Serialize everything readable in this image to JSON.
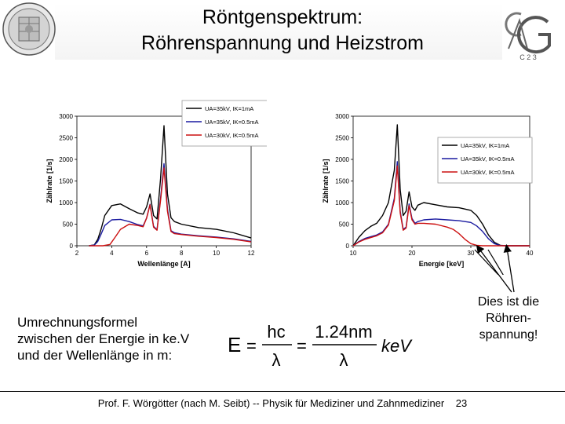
{
  "header": {
    "title_line1": "Röntgenspektrum:",
    "title_line2": "Röhrenspannung und Heizstrom",
    "logo_right_text": "C 2 3"
  },
  "chart_data": [
    {
      "type": "line",
      "xlabel": "Wellenlänge [A]",
      "ylabel": "Zählrate [1/s]",
      "xlim": [
        2,
        12
      ],
      "ylim": [
        0,
        3000
      ],
      "xticks": [
        2,
        4,
        6,
        8,
        10,
        12
      ],
      "yticks": [
        0,
        500,
        1000,
        1500,
        2000,
        2500,
        3000
      ],
      "legend_position": "top-center",
      "series": [
        {
          "name": "UA=35kV, IK=1mA",
          "color": "#000000",
          "x": [
            2.7,
            3.0,
            3.2,
            3.4,
            3.6,
            4.0,
            4.5,
            5.0,
            5.5,
            5.8,
            6.0,
            6.2,
            6.4,
            6.6,
            6.8,
            7.0,
            7.2,
            7.4,
            7.6,
            8.0,
            9.0,
            10.0,
            11.0,
            12.0
          ],
          "y": [
            0,
            20,
            150,
            400,
            700,
            930,
            970,
            860,
            760,
            730,
            900,
            1200,
            700,
            620,
            1550,
            2780,
            1200,
            650,
            560,
            500,
            420,
            380,
            300,
            180
          ]
        },
        {
          "name": "UA=35kV, IK=0.5mA",
          "color": "#1a1aa0",
          "x": [
            2.7,
            3.0,
            3.2,
            3.4,
            3.6,
            4.0,
            4.5,
            5.0,
            5.5,
            5.8,
            6.0,
            6.2,
            6.4,
            6.6,
            6.8,
            7.0,
            7.2,
            7.4,
            7.6,
            8.0,
            9.0,
            10.0,
            11.0,
            12.0
          ],
          "y": [
            0,
            15,
            100,
            280,
            470,
            600,
            610,
            560,
            490,
            460,
            640,
            960,
            450,
            370,
            1100,
            1900,
            850,
            350,
            300,
            270,
            230,
            200,
            160,
            100
          ]
        },
        {
          "name": "UA=30kV, IK=0.5mA",
          "color": "#cc1010",
          "x": [
            2.7,
            3.5,
            3.9,
            4.2,
            4.5,
            5.0,
            5.5,
            5.8,
            6.0,
            6.2,
            6.4,
            6.6,
            6.8,
            7.0,
            7.2,
            7.4,
            7.6,
            8.0,
            9.0,
            10.0,
            11.0,
            12.0
          ],
          "y": [
            0,
            0,
            30,
            200,
            380,
            500,
            470,
            440,
            640,
            950,
            430,
            360,
            1050,
            1800,
            800,
            330,
            280,
            260,
            220,
            190,
            150,
            90
          ]
        }
      ]
    },
    {
      "type": "line",
      "xlabel": "Energie [keV]",
      "ylabel": "Zählrate [1/s]",
      "xlim": [
        10,
        40
      ],
      "ylim": [
        0,
        3000
      ],
      "xticks": [
        10,
        20,
        30,
        40
      ],
      "yticks": [
        0,
        500,
        1000,
        1500,
        2000,
        2500,
        3000
      ],
      "legend_position": "top-right",
      "series": [
        {
          "name": "UA=35kV, IK=1mA",
          "color": "#000000",
          "x": [
            10.0,
            11.0,
            12.0,
            13.0,
            14.0,
            15.0,
            16.0,
            17.0,
            17.5,
            18.0,
            18.5,
            19.0,
            19.5,
            20.0,
            20.5,
            21.0,
            22.0,
            24.0,
            26.0,
            28.0,
            30.0,
            31.0,
            32.0,
            33.0,
            34.0,
            35.0,
            36.0,
            38.0,
            40.0
          ],
          "y": [
            0,
            200,
            350,
            450,
            520,
            700,
            1000,
            1750,
            2800,
            1300,
            700,
            800,
            1250,
            900,
            820,
            940,
            1000,
            950,
            900,
            880,
            820,
            700,
            500,
            250,
            80,
            10,
            0,
            0,
            0
          ]
        },
        {
          "name": "UA=35kV, IK=0.5mA",
          "color": "#1a1aa0",
          "x": [
            10.0,
            11.0,
            12.0,
            13.0,
            14.0,
            15.0,
            16.0,
            17.0,
            17.5,
            18.0,
            18.5,
            19.0,
            19.5,
            20.0,
            20.5,
            21.0,
            22.0,
            24.0,
            26.0,
            28.0,
            30.0,
            31.0,
            32.0,
            33.0,
            34.0,
            35.0,
            36.0,
            38.0,
            40.0
          ],
          "y": [
            0,
            100,
            170,
            210,
            250,
            320,
            500,
            1100,
            1950,
            800,
            380,
            430,
            970,
            630,
            520,
            560,
            600,
            620,
            600,
            580,
            540,
            460,
            330,
            160,
            50,
            5,
            0,
            0,
            0
          ]
        },
        {
          "name": "UA=30kV, IK=0.5mA",
          "color": "#cc1010",
          "x": [
            10.0,
            11.0,
            12.0,
            13.0,
            14.0,
            15.0,
            16.0,
            17.0,
            17.5,
            18.0,
            18.5,
            19.0,
            19.5,
            20.0,
            20.5,
            21.0,
            22.0,
            24.0,
            26.0,
            27.0,
            28.0,
            29.0,
            30.0,
            31.0,
            32.0,
            34.0,
            40.0
          ],
          "y": [
            0,
            90,
            150,
            190,
            230,
            300,
            480,
            1050,
            1850,
            760,
            360,
            410,
            930,
            600,
            500,
            520,
            520,
            500,
            430,
            380,
            280,
            150,
            50,
            10,
            0,
            0,
            0
          ]
        }
      ]
    }
  ],
  "legend": {
    "left": [
      "UA=35kV, IK=1mA",
      "UA=35kV, IK=0.5mA",
      "UA=30kV, IK=0.5mA"
    ],
    "right": [
      "UA=35kV, IK=1mA",
      "UA=35kV, IK=0.5mA",
      "UA=30kV, IK=0.5mA"
    ]
  },
  "body": {
    "conversion_label_line1": "Umrechnungsformel",
    "conversion_label_line2": "zwischen der Energie in ke.V",
    "conversion_label_line3": "und der Wellenlänge in m:",
    "formula_E": "E",
    "formula_eq": "=",
    "formula_hc": "hc",
    "formula_lambda": "λ",
    "formula_num": "1.24nm",
    "formula_unit": "keV",
    "note_line1": "Dies ist die",
    "note_line2": "Röhren-",
    "note_line3": "spannung!"
  },
  "footer": {
    "text": "Prof. F. Wörgötter (nach M. Seibt) -- Physik für Mediziner und Zahnmediziner",
    "page": "23"
  }
}
